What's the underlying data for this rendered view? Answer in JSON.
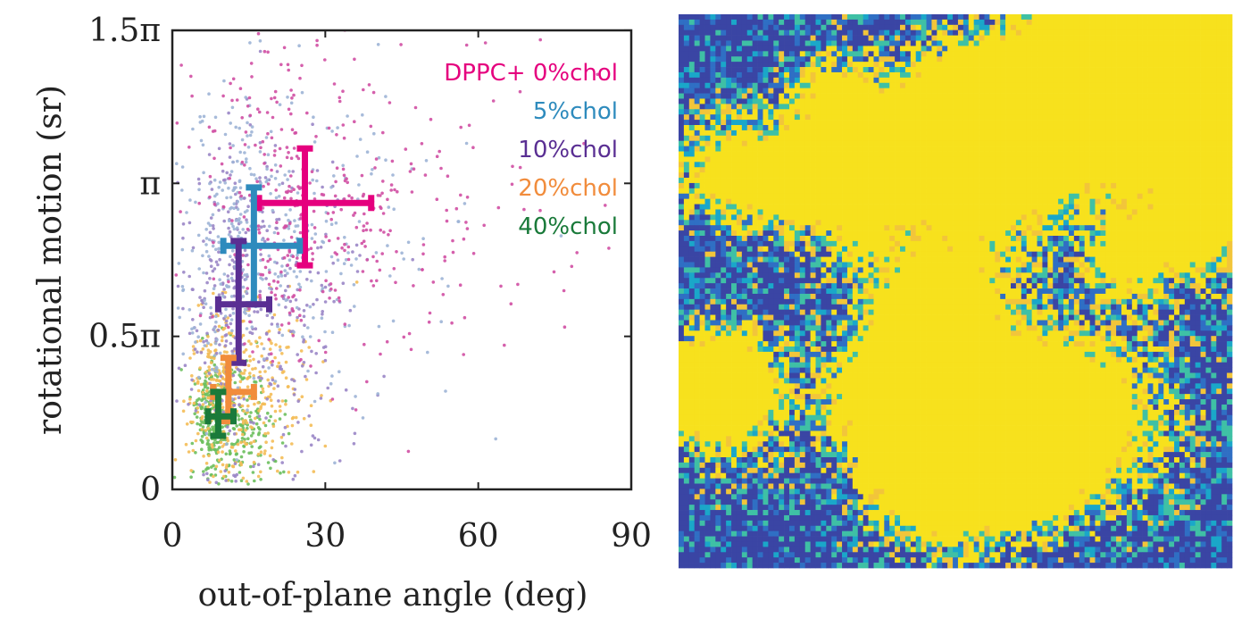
{
  "chart_data": [
    {
      "type": "scatter",
      "title": "",
      "xlabel": "out-of-plane angle (deg)",
      "ylabel": "rotational motion (sr)",
      "xlim": [
        0,
        90
      ],
      "ylim": [
        0,
        4.712
      ],
      "x_ticks": [
        {
          "value": 0,
          "label": "0"
        },
        {
          "value": 30,
          "label": "30"
        },
        {
          "value": 60,
          "label": "60"
        },
        {
          "value": 90,
          "label": "90"
        }
      ],
      "y_ticks": [
        {
          "value": 0,
          "label": "0"
        },
        {
          "value": 1.5708,
          "label": "0.5π"
        },
        {
          "value": 3.1416,
          "label": "π"
        },
        {
          "value": 4.7124,
          "label": "1.5π"
        }
      ],
      "grid": false,
      "legend_position": "top-right",
      "series": [
        {
          "name": "DPPC+ 0%chol",
          "color": "#e5007e",
          "scatter_color": "#d04fa3",
          "mean": {
            "x": 26,
            "y": 2.94
          },
          "x_err": [
            17,
            39
          ],
          "y_err": [
            2.3,
            3.5
          ]
        },
        {
          "name": "5%chol",
          "color": "#2e8bbd",
          "scatter_color": "#9db4d6",
          "mean": {
            "x": 16,
            "y": 2.5
          },
          "x_err": [
            10,
            25
          ],
          "y_err": [
            1.9,
            3.1
          ]
        },
        {
          "name": "10%chol",
          "color": "#5a2f93",
          "scatter_color": "#9a86c6",
          "mean": {
            "x": 13,
            "y": 1.9
          },
          "x_err": [
            9,
            19
          ],
          "y_err": [
            1.3,
            2.55
          ]
        },
        {
          "name": "20%chol",
          "color": "#f18c3c",
          "scatter_color": "#f4bd57",
          "mean": {
            "x": 11,
            "y": 1.0
          },
          "x_err": [
            8,
            16
          ],
          "y_err": [
            0.7,
            1.35
          ]
        },
        {
          "name": "40%chol",
          "color": "#1a7a3a",
          "scatter_color": "#6cbf5d",
          "mean": {
            "x": 9,
            "y": 0.75
          },
          "x_err": [
            7,
            12
          ],
          "y_err": [
            0.55,
            1.0
          ]
        }
      ]
    },
    {
      "type": "heatmap",
      "title": "",
      "colormap": [
        "#3a45a4",
        "#2f6fc4",
        "#1aa7c9",
        "#3fc0a5",
        "#f2c53a",
        "#f7e11d"
      ],
      "grid_size": 105
    }
  ]
}
